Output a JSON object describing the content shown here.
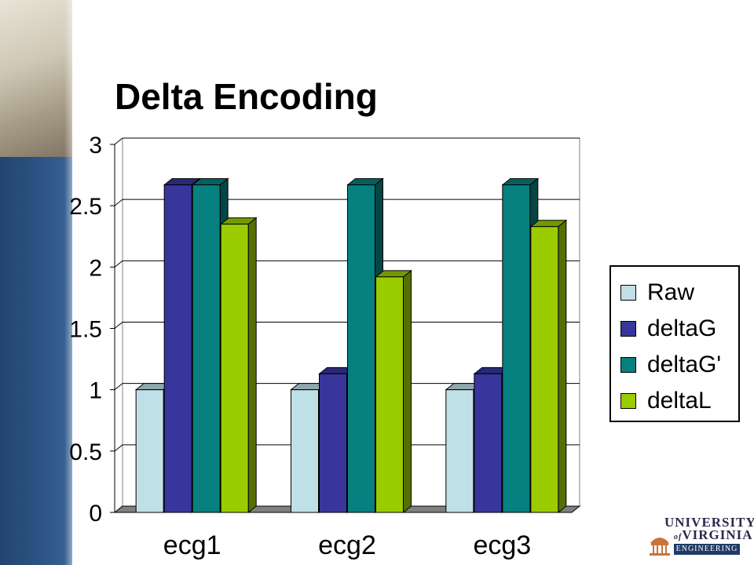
{
  "slide": {
    "title": "Delta Encoding"
  },
  "logo": {
    "line1": "UNIVERSITY",
    "line2": "VIRGINIA",
    "line2_prefix": "of",
    "band": "ENGINEERING"
  },
  "chart_data": {
    "type": "bar",
    "style": "3d-clustered-column",
    "title": "",
    "xlabel": "",
    "ylabel": "",
    "categories": [
      "ecg1",
      "ecg2",
      "ecg3"
    ],
    "ylim": [
      0,
      3
    ],
    "yticks": [
      "0",
      "0.5",
      "1",
      "1.5",
      "2",
      "2.5",
      "3"
    ],
    "ytick_values": [
      0,
      0.5,
      1,
      1.5,
      2,
      2.5,
      3
    ],
    "grid": true,
    "legend_position": "right",
    "series": [
      {
        "name": "Raw",
        "values": [
          1.0,
          1.0,
          1.0
        ],
        "color": "#bfe0e6"
      },
      {
        "name": "deltaG",
        "values": [
          2.67,
          1.13,
          1.13
        ],
        "color": "#38369c"
      },
      {
        "name": "deltaG'",
        "values": [
          2.67,
          2.67,
          2.67
        ],
        "color": "#078080"
      },
      {
        "name": "deltaL",
        "values": [
          2.35,
          1.92,
          2.33
        ],
        "color": "#9acc00"
      }
    ],
    "plot_background": "#ffffff",
    "floor_color": "#808080"
  }
}
